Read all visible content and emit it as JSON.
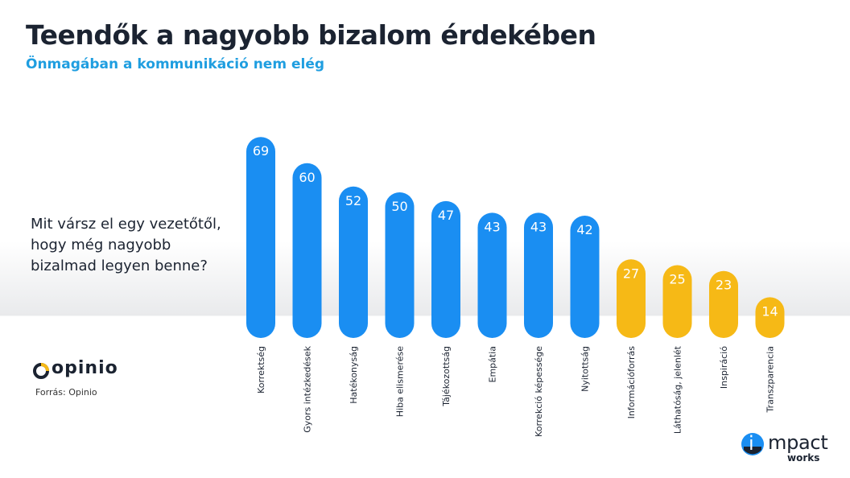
{
  "title": "Teendők a nagyobb bizalom érdekében",
  "subtitle": "Önmagában a kommunikáció nem elég",
  "question_lines": [
    "Mit vársz el egy vezetőtől,",
    "hogy még nagyobb",
    "bizalmad legyen benne?"
  ],
  "source": "Forrás: Opinio",
  "logos": {
    "opinio": "opinio",
    "impact_i": "i",
    "impact": "mpact",
    "works": "works"
  },
  "colors": {
    "blue": "#1a8ef2",
    "yellow": "#f6b916",
    "title": "#1b2331",
    "subtitle": "#1f9ee0"
  },
  "chart_data": {
    "type": "bar",
    "categories": [
      "Korrektség",
      "Gyors intézkedések",
      "Hatékonyság",
      "Hiba elismerése",
      "Tájékozottság",
      "Empátia",
      "Korrekció képessége",
      "Nyitottság",
      "Információforrás",
      "Láthatóság, jelenlét",
      "Inspiráció",
      "Transzparencia"
    ],
    "values": [
      69,
      60,
      52,
      50,
      47,
      43,
      43,
      42,
      27,
      25,
      23,
      14
    ],
    "bar_colors": [
      "blue",
      "blue",
      "blue",
      "blue",
      "blue",
      "blue",
      "blue",
      "blue",
      "yellow",
      "yellow",
      "yellow",
      "yellow"
    ],
    "data_labels": true,
    "axes": false,
    "grid": false,
    "legend": false
  }
}
